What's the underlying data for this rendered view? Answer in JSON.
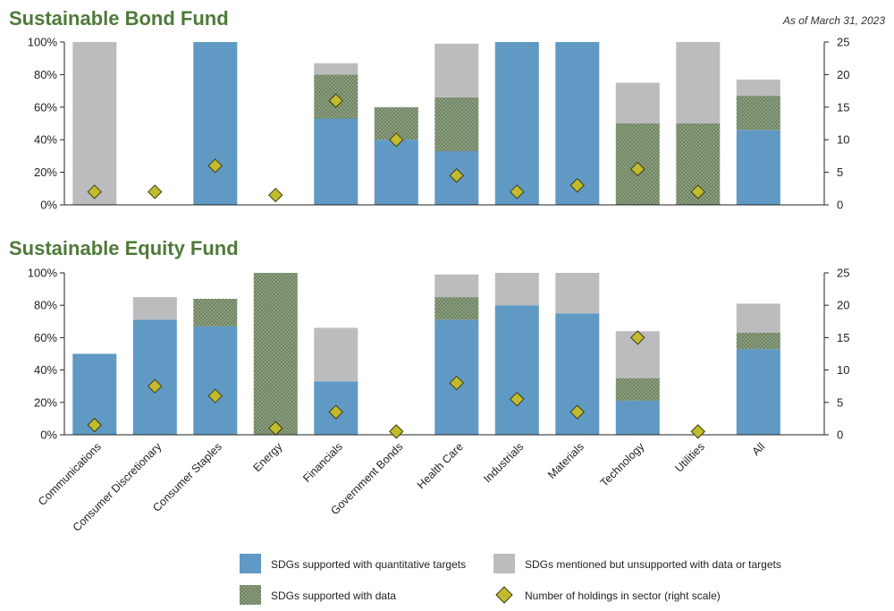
{
  "as_of": "As of March 31, 2023",
  "colors": {
    "quantitative": "#6099c3",
    "with_data": "#6f8463",
    "mentioned": "#bcbcbf",
    "holdings": "#c2bb2c",
    "title": "#4f7a3a"
  },
  "chart_data": [
    {
      "type": "bar",
      "stacked": true,
      "title": "Sustainable Bond Fund",
      "ylim": [
        0,
        100
      ],
      "y_tick_labels": [
        "0%",
        "20%",
        "40%",
        "60%",
        "80%",
        "100%"
      ],
      "y2lim": [
        0,
        25
      ],
      "y2_tick_labels": [
        "0",
        "5",
        "10",
        "15",
        "20",
        "25"
      ],
      "categories": [
        "Communications",
        "Consumer Discretionary",
        "Consumer Staples",
        "Energy",
        "Financials",
        "Government Bonds",
        "Health Care",
        "Industrials",
        "Materials",
        "Technology",
        "Utilities",
        "All"
      ],
      "series": [
        {
          "name": "SDGs supported with quantitative targets",
          "values": [
            0,
            0,
            100,
            0,
            53,
            40,
            33,
            100,
            100,
            0,
            0,
            46
          ]
        },
        {
          "name": "SDGs supported with data",
          "values": [
            0,
            0,
            0,
            0,
            27,
            20,
            33,
            0,
            0,
            50,
            50,
            21
          ]
        },
        {
          "name": "SDGs mentioned but unsupported with data or targets",
          "values": [
            100,
            0,
            0,
            0,
            7,
            0,
            33,
            0,
            0,
            25,
            50,
            10
          ]
        },
        {
          "name": "Number of holdings in sector (right scale)",
          "axis": "right",
          "values": [
            2,
            2,
            6,
            1.5,
            16,
            10,
            4.5,
            2,
            3,
            5.5,
            2,
            null
          ]
        }
      ]
    },
    {
      "type": "bar",
      "stacked": true,
      "title": "Sustainable Equity Fund",
      "ylim": [
        0,
        100
      ],
      "y_tick_labels": [
        "0%",
        "20%",
        "40%",
        "60%",
        "80%",
        "100%"
      ],
      "y2lim": [
        0,
        25
      ],
      "y2_tick_labels": [
        "0",
        "5",
        "10",
        "15",
        "20",
        "25"
      ],
      "categories": [
        "Communications",
        "Consumer Discretionary",
        "Consumer Staples",
        "Energy",
        "Financials",
        "Government Bonds",
        "Health Care",
        "Industrials",
        "Materials",
        "Technology",
        "Utilities",
        "All"
      ],
      "series": [
        {
          "name": "SDGs supported with quantitative targets",
          "values": [
            50,
            71,
            67,
            0,
            33,
            0,
            71,
            80,
            75,
            21,
            0,
            53
          ]
        },
        {
          "name": "SDGs supported with data",
          "values": [
            0,
            0,
            17,
            100,
            0,
            0,
            14,
            0,
            0,
            14,
            0,
            10
          ]
        },
        {
          "name": "SDGs mentioned but unsupported with data or targets",
          "values": [
            0,
            14,
            0,
            0,
            33,
            0,
            14,
            20,
            25,
            29,
            0,
            18
          ]
        },
        {
          "name": "Number of holdings in sector (right scale)",
          "axis": "right",
          "values": [
            1.5,
            7.5,
            6,
            1,
            3.5,
            0.5,
            8,
            5.5,
            3.5,
            15,
            0.5,
            null
          ]
        }
      ]
    }
  ],
  "legend": [
    {
      "key": "quantitative",
      "label": "SDGs supported with quantitative targets"
    },
    {
      "key": "mentioned",
      "label": "SDGs mentioned but unsupported with data or targets"
    },
    {
      "key": "with_data",
      "label": "SDGs supported with data"
    },
    {
      "key": "holdings",
      "label": "Number of holdings in sector (right scale)"
    }
  ]
}
